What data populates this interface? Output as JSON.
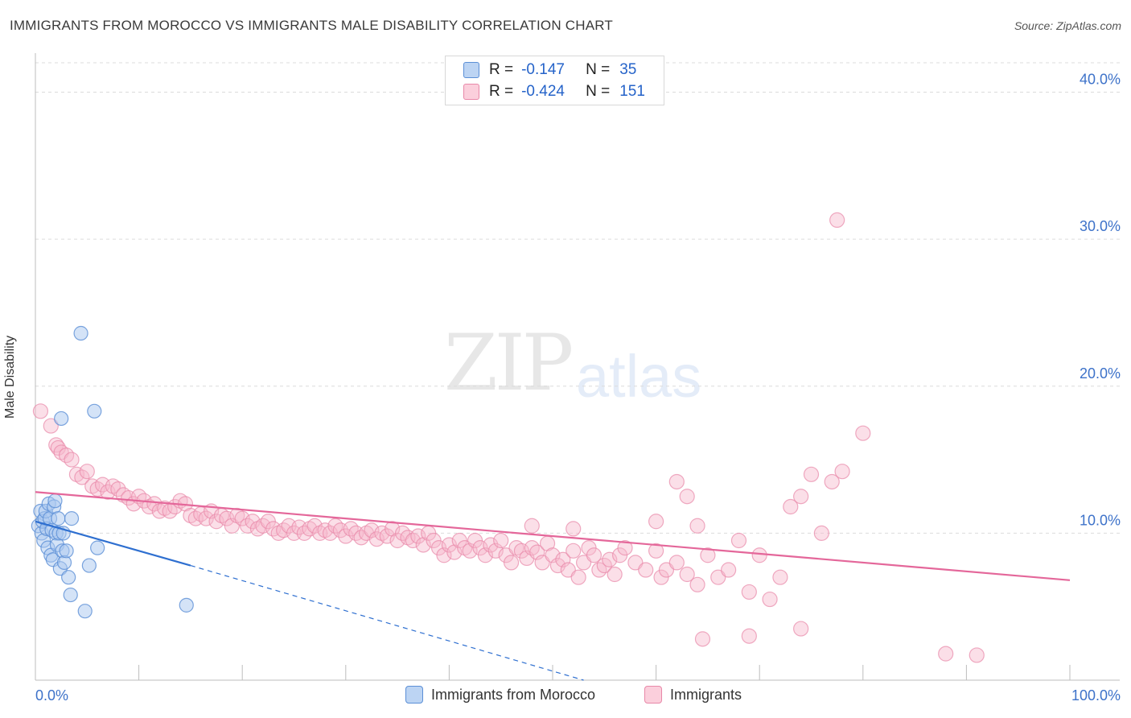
{
  "header": {
    "title": "IMMIGRANTS FROM MOROCCO VS IMMIGRANTS MALE DISABILITY CORRELATION CHART",
    "source": "Source: ZipAtlas.com"
  },
  "watermark": {
    "zip": "ZIP",
    "atlas": "atlas"
  },
  "legend": {
    "rows": [
      {
        "r_label": "R =",
        "r_value": "-0.147",
        "n_label": "N =",
        "n_value": "35"
      },
      {
        "r_label": "R =",
        "r_value": "-0.424",
        "n_label": "N =",
        "n_value": "151"
      }
    ]
  },
  "bottom_legend": {
    "series1": "Immigrants from Morocco",
    "series2": "Immigrants"
  },
  "colors": {
    "blue_fill": "#a9c8f0",
    "blue_stroke": "#5b8fd6",
    "blue_line": "#2e6fd0",
    "pink_fill": "#f6b8cc",
    "pink_stroke": "#e888a8",
    "pink_line": "#e4679a",
    "tick_text": "#3d72c9",
    "grid": "#dcdcdc"
  },
  "chart_data": {
    "type": "scatter",
    "title": "IMMIGRANTS FROM MOROCCO VS IMMIGRANTS MALE DISABILITY CORRELATION CHART",
    "xlabel": "",
    "ylabel": "Male Disability",
    "xlim": [
      0,
      100
    ],
    "ylim": [
      0,
      42
    ],
    "x_tick_labels": [
      "0.0%",
      "100.0%"
    ],
    "y_ticks": [
      10,
      20,
      30,
      40
    ],
    "y_tick_labels": [
      "10.0%",
      "20.0%",
      "30.0%",
      "40.0%"
    ],
    "legend_position": "top-center",
    "series": [
      {
        "name": "Immigrants from Morocco",
        "r": -0.147,
        "n": 35,
        "trend": {
          "x0": 0,
          "y0": 10.8,
          "x1": 15,
          "y1": 7.8,
          "dashed_to_x": 53,
          "dashed_to_y": 0
        },
        "points": [
          [
            0.3,
            10.5
          ],
          [
            0.5,
            11.5
          ],
          [
            0.6,
            10.0
          ],
          [
            0.7,
            10.8
          ],
          [
            0.8,
            9.5
          ],
          [
            0.9,
            11.0
          ],
          [
            1.0,
            11.5
          ],
          [
            1.1,
            10.3
          ],
          [
            1.2,
            9.0
          ],
          [
            1.3,
            12.0
          ],
          [
            1.4,
            11.0
          ],
          [
            1.5,
            8.5
          ],
          [
            1.6,
            10.2
          ],
          [
            1.7,
            8.2
          ],
          [
            1.8,
            11.8
          ],
          [
            1.9,
            12.2
          ],
          [
            2.0,
            10.0
          ],
          [
            2.1,
            9.2
          ],
          [
            2.2,
            11.0
          ],
          [
            2.3,
            10.0
          ],
          [
            2.4,
            7.6
          ],
          [
            2.5,
            17.8
          ],
          [
            2.6,
            8.8
          ],
          [
            2.7,
            10.0
          ],
          [
            2.8,
            8.0
          ],
          [
            3.0,
            8.8
          ],
          [
            3.2,
            7.0
          ],
          [
            3.4,
            5.8
          ],
          [
            3.5,
            11.0
          ],
          [
            4.8,
            4.7
          ],
          [
            5.2,
            7.8
          ],
          [
            5.7,
            18.3
          ],
          [
            6.0,
            9.0
          ],
          [
            4.4,
            23.6
          ],
          [
            14.6,
            5.1
          ]
        ]
      },
      {
        "name": "Immigrants",
        "r": -0.424,
        "n": 151,
        "trend": {
          "x0": 0,
          "y0": 12.8,
          "x1": 100,
          "y1": 6.8
        },
        "points": [
          [
            0.5,
            18.3
          ],
          [
            1.5,
            17.3
          ],
          [
            2.0,
            16.0
          ],
          [
            2.2,
            15.8
          ],
          [
            2.5,
            15.5
          ],
          [
            3.0,
            15.3
          ],
          [
            3.5,
            15.0
          ],
          [
            4.0,
            14.0
          ],
          [
            4.5,
            13.8
          ],
          [
            5.0,
            14.2
          ],
          [
            5.5,
            13.2
          ],
          [
            6.0,
            13.0
          ],
          [
            6.5,
            13.3
          ],
          [
            7.0,
            12.8
          ],
          [
            7.5,
            13.2
          ],
          [
            8.0,
            13.0
          ],
          [
            8.5,
            12.6
          ],
          [
            9.0,
            12.4
          ],
          [
            9.5,
            12.0
          ],
          [
            10.0,
            12.5
          ],
          [
            10.5,
            12.2
          ],
          [
            11.0,
            11.8
          ],
          [
            11.5,
            12.0
          ],
          [
            12.0,
            11.5
          ],
          [
            12.5,
            11.7
          ],
          [
            13.0,
            11.5
          ],
          [
            13.5,
            11.8
          ],
          [
            14.0,
            12.2
          ],
          [
            14.5,
            12.0
          ],
          [
            15.0,
            11.2
          ],
          [
            15.5,
            11.0
          ],
          [
            16.0,
            11.3
          ],
          [
            16.5,
            11.0
          ],
          [
            17.0,
            11.5
          ],
          [
            17.5,
            10.8
          ],
          [
            18.0,
            11.2
          ],
          [
            18.5,
            11.0
          ],
          [
            19.0,
            10.5
          ],
          [
            19.5,
            11.2
          ],
          [
            20.0,
            11.0
          ],
          [
            20.5,
            10.5
          ],
          [
            21.0,
            10.8
          ],
          [
            21.5,
            10.3
          ],
          [
            22.0,
            10.5
          ],
          [
            22.5,
            10.8
          ],
          [
            23.0,
            10.3
          ],
          [
            23.5,
            10.0
          ],
          [
            24.0,
            10.2
          ],
          [
            24.5,
            10.5
          ],
          [
            25.0,
            10.0
          ],
          [
            25.5,
            10.4
          ],
          [
            26.0,
            10.0
          ],
          [
            26.5,
            10.3
          ],
          [
            27.0,
            10.5
          ],
          [
            27.5,
            10.0
          ],
          [
            28.0,
            10.2
          ],
          [
            28.5,
            10.0
          ],
          [
            29.0,
            10.5
          ],
          [
            29.5,
            10.2
          ],
          [
            30.0,
            9.8
          ],
          [
            30.5,
            10.3
          ],
          [
            31.0,
            10.0
          ],
          [
            31.5,
            9.7
          ],
          [
            32.0,
            10.0
          ],
          [
            32.5,
            10.2
          ],
          [
            33.0,
            9.6
          ],
          [
            33.5,
            10.0
          ],
          [
            34.0,
            9.8
          ],
          [
            34.5,
            10.3
          ],
          [
            35.0,
            9.5
          ],
          [
            35.5,
            10.0
          ],
          [
            36.0,
            9.7
          ],
          [
            36.5,
            9.5
          ],
          [
            37.0,
            9.8
          ],
          [
            37.5,
            9.2
          ],
          [
            38.0,
            10.0
          ],
          [
            38.5,
            9.5
          ],
          [
            39.0,
            9.0
          ],
          [
            39.5,
            8.5
          ],
          [
            40.0,
            9.2
          ],
          [
            40.5,
            8.7
          ],
          [
            41.0,
            9.5
          ],
          [
            41.5,
            9.0
          ],
          [
            42.0,
            8.8
          ],
          [
            42.5,
            9.5
          ],
          [
            43.0,
            9.0
          ],
          [
            43.5,
            8.5
          ],
          [
            44.0,
            9.2
          ],
          [
            44.5,
            8.8
          ],
          [
            45.0,
            9.5
          ],
          [
            45.5,
            8.5
          ],
          [
            46.0,
            8.0
          ],
          [
            46.5,
            9.0
          ],
          [
            47.0,
            8.8
          ],
          [
            47.5,
            8.3
          ],
          [
            48.0,
            9.0
          ],
          [
            48.5,
            8.7
          ],
          [
            49.0,
            8.0
          ],
          [
            49.5,
            9.3
          ],
          [
            50.0,
            8.5
          ],
          [
            50.5,
            7.8
          ],
          [
            51.0,
            8.2
          ],
          [
            51.5,
            7.5
          ],
          [
            52.0,
            8.8
          ],
          [
            52.5,
            7.0
          ],
          [
            53.0,
            8.0
          ],
          [
            53.5,
            9.0
          ],
          [
            54.0,
            8.5
          ],
          [
            54.5,
            7.5
          ],
          [
            55.0,
            7.8
          ],
          [
            55.5,
            8.2
          ],
          [
            56.0,
            7.2
          ],
          [
            56.5,
            8.5
          ],
          [
            57.0,
            9.0
          ],
          [
            58.0,
            8.0
          ],
          [
            59.0,
            7.5
          ],
          [
            60.0,
            8.8
          ],
          [
            60.5,
            7.0
          ],
          [
            61.0,
            7.5
          ],
          [
            62.0,
            8.0
          ],
          [
            63.0,
            7.2
          ],
          [
            64.0,
            6.5
          ],
          [
            65.0,
            8.5
          ],
          [
            66.0,
            7.0
          ],
          [
            67.0,
            7.5
          ],
          [
            68.0,
            9.5
          ],
          [
            69.0,
            6.0
          ],
          [
            70.0,
            8.5
          ],
          [
            71.0,
            5.5
          ],
          [
            72.0,
            7.0
          ],
          [
            73.0,
            11.8
          ],
          [
            74.0,
            12.5
          ],
          [
            75.0,
            14.0
          ],
          [
            76.0,
            10.0
          ],
          [
            77.0,
            13.5
          ],
          [
            78.0,
            14.2
          ],
          [
            48.0,
            10.5
          ],
          [
            52.0,
            10.3
          ],
          [
            60.0,
            10.8
          ],
          [
            62.0,
            13.5
          ],
          [
            63.0,
            12.5
          ],
          [
            64.0,
            10.5
          ],
          [
            69.0,
            3.0
          ],
          [
            74.0,
            3.5
          ],
          [
            80.0,
            16.8
          ],
          [
            77.5,
            31.3
          ],
          [
            88.0,
            1.8
          ],
          [
            91.0,
            1.7
          ],
          [
            64.5,
            2.8
          ]
        ]
      }
    ]
  }
}
